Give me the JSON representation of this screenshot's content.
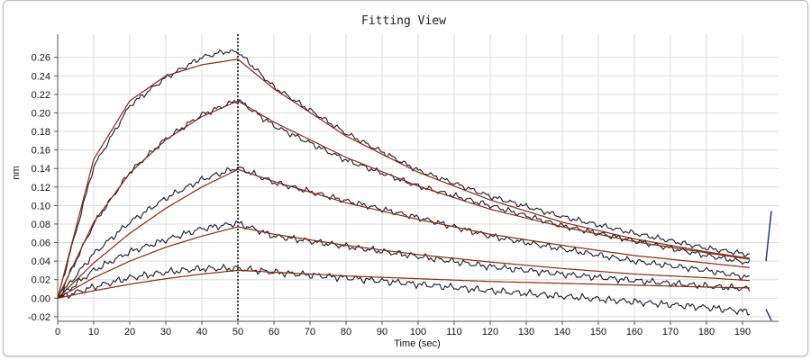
{
  "chart_data": {
    "type": "line",
    "title": "Fitting View",
    "xlabel": "Time (sec)",
    "ylabel": "nm",
    "xlim": [
      0,
      200
    ],
    "ylim": [
      -0.025,
      0.285
    ],
    "xticks": [
      0,
      10,
      20,
      30,
      40,
      50,
      60,
      70,
      80,
      90,
      100,
      110,
      120,
      130,
      140,
      150,
      160,
      170,
      180,
      190
    ],
    "yticks": [
      -0.02,
      0.0,
      0.02,
      0.04,
      0.06,
      0.08,
      0.1,
      0.12,
      0.14,
      0.16,
      0.18,
      0.2,
      0.22,
      0.24,
      0.26
    ],
    "ytick_labels": [
      "-0.02",
      "0.00",
      "0.02",
      "0.04",
      "0.06",
      "0.08",
      "0.10",
      "0.12",
      "0.14",
      "0.16",
      "0.18",
      "0.20",
      "0.22",
      "0.24",
      "0.26"
    ],
    "grid": true,
    "association_end_x": 50,
    "x_end": 198,
    "colors": {
      "data": "#1a1a2e",
      "fit": "#8b2a10",
      "grid": "#dcdcdc",
      "marker": "#000000"
    },
    "series": [
      {
        "fit": [
          [
            0,
            0.0
          ],
          [
            10,
            0.15
          ],
          [
            20,
            0.213
          ],
          [
            30,
            0.24
          ],
          [
            40,
            0.252
          ],
          [
            50,
            0.258
          ],
          [
            60,
            0.226
          ],
          [
            80,
            0.175
          ],
          [
            100,
            0.136
          ],
          [
            120,
            0.106
          ],
          [
            140,
            0.082
          ],
          [
            160,
            0.064
          ],
          [
            180,
            0.05
          ],
          [
            192,
            0.043
          ]
        ],
        "data": [
          [
            0,
            0.0
          ],
          [
            10,
            0.142
          ],
          [
            20,
            0.208
          ],
          [
            30,
            0.238
          ],
          [
            40,
            0.26
          ],
          [
            46,
            0.266
          ],
          [
            50,
            0.266
          ],
          [
            60,
            0.228
          ],
          [
            80,
            0.178
          ],
          [
            100,
            0.138
          ],
          [
            120,
            0.11
          ],
          [
            140,
            0.088
          ],
          [
            160,
            0.07
          ],
          [
            180,
            0.054
          ],
          [
            192,
            0.047
          ]
        ]
      },
      {
        "fit": [
          [
            0,
            0.0
          ],
          [
            10,
            0.082
          ],
          [
            20,
            0.135
          ],
          [
            30,
            0.171
          ],
          [
            40,
            0.196
          ],
          [
            50,
            0.213
          ],
          [
            60,
            0.19
          ],
          [
            80,
            0.152
          ],
          [
            100,
            0.121
          ],
          [
            120,
            0.096
          ],
          [
            140,
            0.077
          ],
          [
            160,
            0.061
          ],
          [
            180,
            0.049
          ],
          [
            192,
            0.042
          ]
        ],
        "data": [
          [
            0,
            0.0
          ],
          [
            10,
            0.08
          ],
          [
            20,
            0.136
          ],
          [
            30,
            0.172
          ],
          [
            40,
            0.198
          ],
          [
            50,
            0.214
          ],
          [
            60,
            0.186
          ],
          [
            80,
            0.149
          ],
          [
            100,
            0.121
          ],
          [
            120,
            0.1
          ],
          [
            140,
            0.078
          ],
          [
            160,
            0.062
          ],
          [
            180,
            0.046
          ],
          [
            192,
            0.038
          ]
        ]
      },
      {
        "fit": [
          [
            0,
            0.0
          ],
          [
            10,
            0.038
          ],
          [
            20,
            0.07
          ],
          [
            30,
            0.097
          ],
          [
            40,
            0.12
          ],
          [
            50,
            0.139
          ],
          [
            60,
            0.126
          ],
          [
            80,
            0.103
          ],
          [
            100,
            0.085
          ],
          [
            120,
            0.069
          ],
          [
            140,
            0.057
          ],
          [
            160,
            0.046
          ],
          [
            180,
            0.038
          ],
          [
            192,
            0.033
          ]
        ],
        "data": [
          [
            0,
            0.0
          ],
          [
            10,
            0.048
          ],
          [
            20,
            0.082
          ],
          [
            30,
            0.108
          ],
          [
            40,
            0.128
          ],
          [
            50,
            0.141
          ],
          [
            60,
            0.125
          ],
          [
            80,
            0.105
          ],
          [
            100,
            0.087
          ],
          [
            120,
            0.067
          ],
          [
            140,
            0.053
          ],
          [
            160,
            0.04
          ],
          [
            180,
            0.03
          ],
          [
            192,
            0.022
          ]
        ]
      },
      {
        "fit": [
          [
            0,
            0.0
          ],
          [
            10,
            0.022
          ],
          [
            20,
            0.04
          ],
          [
            30,
            0.055
          ],
          [
            40,
            0.067
          ],
          [
            50,
            0.077
          ],
          [
            60,
            0.069
          ],
          [
            80,
            0.057
          ],
          [
            100,
            0.047
          ],
          [
            120,
            0.039
          ],
          [
            140,
            0.032
          ],
          [
            160,
            0.026
          ],
          [
            180,
            0.022
          ],
          [
            192,
            0.019
          ]
        ],
        "data": [
          [
            0,
            0.0
          ],
          [
            10,
            0.03
          ],
          [
            20,
            0.05
          ],
          [
            30,
            0.063
          ],
          [
            40,
            0.075
          ],
          [
            50,
            0.081
          ],
          [
            60,
            0.067
          ],
          [
            80,
            0.056
          ],
          [
            100,
            0.045
          ],
          [
            120,
            0.034
          ],
          [
            140,
            0.026
          ],
          [
            160,
            0.019
          ],
          [
            180,
            0.013
          ],
          [
            192,
            0.01
          ]
        ]
      },
      {
        "fit": [
          [
            0,
            0.0
          ],
          [
            10,
            0.008
          ],
          [
            20,
            0.015
          ],
          [
            30,
            0.021
          ],
          [
            40,
            0.026
          ],
          [
            50,
            0.03
          ],
          [
            60,
            0.028
          ],
          [
            80,
            0.024
          ],
          [
            100,
            0.021
          ],
          [
            120,
            0.018
          ],
          [
            140,
            0.016
          ],
          [
            160,
            0.014
          ],
          [
            180,
            0.012
          ],
          [
            192,
            0.011
          ]
        ],
        "data": [
          [
            0,
            0.0
          ],
          [
            10,
            0.012
          ],
          [
            20,
            0.022
          ],
          [
            30,
            0.028
          ],
          [
            40,
            0.032
          ],
          [
            50,
            0.032
          ],
          [
            60,
            0.028
          ],
          [
            80,
            0.022
          ],
          [
            100,
            0.015
          ],
          [
            120,
            0.008
          ],
          [
            140,
            0.002
          ],
          [
            160,
            -0.004
          ],
          [
            180,
            -0.01
          ],
          [
            192,
            -0.015
          ]
        ]
      }
    ]
  }
}
